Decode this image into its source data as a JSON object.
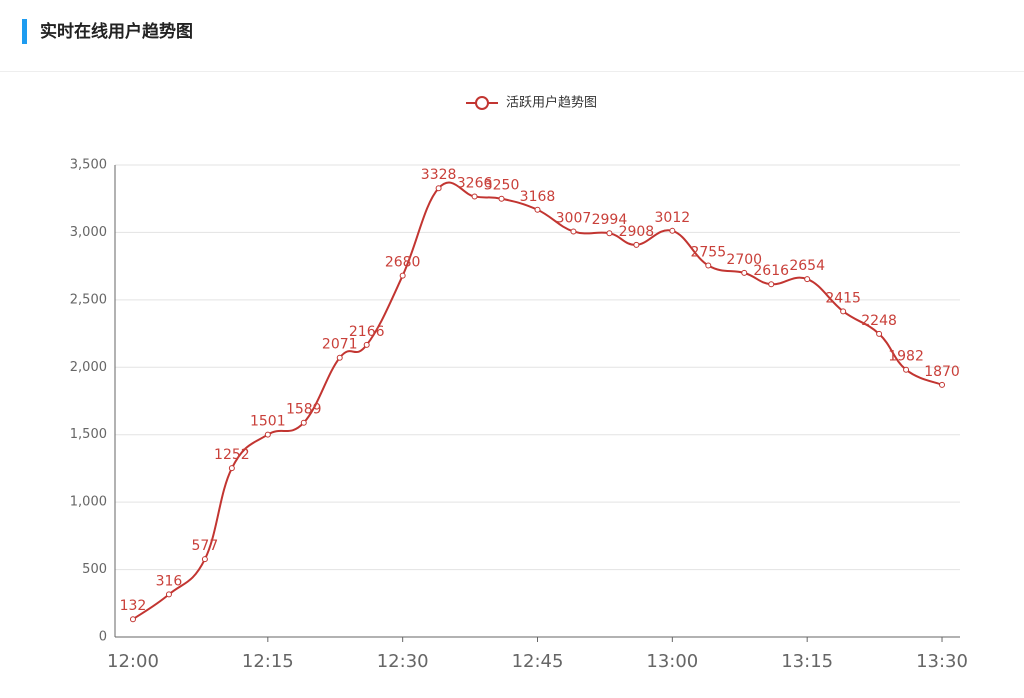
{
  "chart_data": {
    "type": "line",
    "title": "实时在线用户趋势图",
    "x": [
      "12:00",
      "12:04",
      "12:08",
      "12:11",
      "12:15",
      "12:19",
      "12:23",
      "12:26",
      "12:30",
      "12:34",
      "12:38",
      "12:41",
      "12:45",
      "12:49",
      "12:53",
      "12:56",
      "13:00",
      "13:04",
      "13:08",
      "13:11",
      "13:15",
      "13:19",
      "13:23",
      "13:26",
      "13:30"
    ],
    "series": [
      {
        "name": "活跃用户趋势图",
        "color": "#c23531",
        "values": [
          132,
          316,
          577,
          1252,
          1501,
          1589,
          2071,
          2166,
          2680,
          3328,
          3266,
          3250,
          3168,
          3007,
          2994,
          2908,
          3012,
          2755,
          2700,
          2616,
          2654,
          2415,
          2248,
          1982,
          1870
        ]
      }
    ],
    "xlim": [
      "11:58",
      "13:32"
    ],
    "xticks": [
      "12:15",
      "12:30",
      "12:45",
      "13:00",
      "13:15",
      "13:30"
    ],
    "ylim": [
      0,
      3500
    ],
    "yticks": [
      0,
      500,
      {
        "value": 1000,
        "label": "1,000"
      },
      {
        "value": 1500,
        "label": "1,500"
      },
      {
        "value": 2000,
        "label": "2,000"
      },
      {
        "value": 2500,
        "label": "2,500"
      },
      {
        "value": 3000,
        "label": "3,000"
      },
      {
        "value": 3500,
        "label": "3,500"
      }
    ],
    "grid": true,
    "smooth": true,
    "legend": "top"
  }
}
